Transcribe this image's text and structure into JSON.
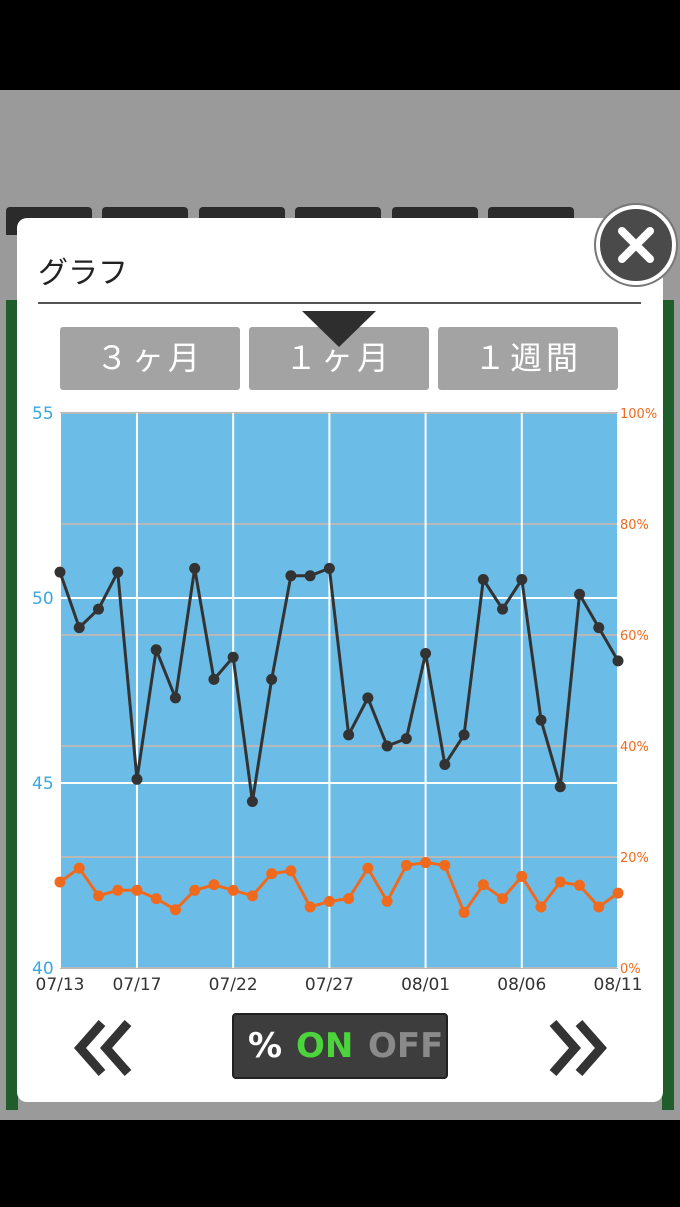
{
  "dialog": {
    "title": "グラフ",
    "ranges": [
      "３ヶ月",
      "１ヶ月",
      "１週間"
    ],
    "selected_range": "１ヶ月",
    "toggle": {
      "percent": "%",
      "on": "ON",
      "off": "OFF",
      "state": "ON"
    }
  },
  "colors": {
    "plot_bg": "#6bbde8",
    "weight_line": "#333333",
    "percent_line": "#f06a1e",
    "left_axis": "#3aa8e0",
    "right_axis": "#f06a1e",
    "toggle_on": "#4cd43c"
  },
  "chart_data": {
    "type": "line",
    "x": [
      "07/13",
      "07/14",
      "07/15",
      "07/16",
      "07/17",
      "07/18",
      "07/19",
      "07/20",
      "07/21",
      "07/22",
      "07/23",
      "07/24",
      "07/25",
      "07/26",
      "07/27",
      "07/28",
      "07/29",
      "07/30",
      "07/31",
      "08/01",
      "08/02",
      "08/03",
      "08/04",
      "08/05",
      "08/06",
      "08/07",
      "08/08",
      "08/09",
      "08/10",
      "08/11"
    ],
    "x_tick_labels": [
      "07/13",
      "07/17",
      "07/22",
      "07/27",
      "08/01",
      "08/06",
      "08/11"
    ],
    "y_left": {
      "range": [
        40,
        55
      ],
      "ticks": [
        "40",
        "45",
        "50",
        "55"
      ]
    },
    "y_right": {
      "range": [
        0,
        100
      ],
      "ticks": [
        "0%",
        "20%",
        "40%",
        "60%",
        "80%",
        "100%"
      ]
    },
    "grid": true,
    "series": [
      {
        "axis": "left",
        "values": [
          50.7,
          49.2,
          49.7,
          50.7,
          45.1,
          48.6,
          47.3,
          50.8,
          47.8,
          48.4,
          44.5,
          47.8,
          50.6,
          50.6,
          50.8,
          46.3,
          47.3,
          46.0,
          46.2,
          48.5,
          45.5,
          46.3,
          50.5,
          49.7,
          50.5,
          46.7,
          44.9,
          50.1,
          49.2,
          48.3
        ]
      },
      {
        "axis": "right",
        "values": [
          15.5,
          18,
          13,
          14,
          14,
          12.5,
          10.5,
          14,
          15,
          14,
          13,
          17,
          17.5,
          11,
          12,
          12.5,
          18,
          12,
          18.5,
          19,
          18.5,
          10,
          15,
          12.5,
          16.5,
          11,
          15.5,
          14.9,
          11,
          13.5
        ]
      }
    ]
  }
}
